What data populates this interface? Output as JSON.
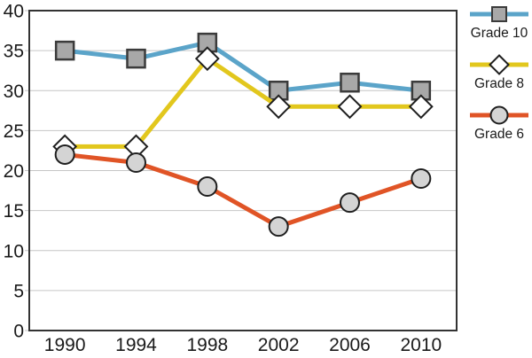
{
  "chart_data": {
    "type": "line",
    "title": "",
    "xlabel": "",
    "ylabel": "",
    "x": [
      "1990",
      "1994",
      "1998",
      "2002",
      "2006",
      "2010"
    ],
    "ylim": [
      0,
      40
    ],
    "yticks": [
      0,
      5,
      10,
      15,
      20,
      25,
      30,
      35,
      40
    ],
    "grid": true,
    "legend_position": "right",
    "series": [
      {
        "name": "Grade 10",
        "values": [
          35,
          34,
          36,
          30,
          31,
          30
        ],
        "color": "#5BA4C9",
        "marker": "square",
        "marker_fill": "#A8A8A8",
        "marker_stroke": "#3b3b3b"
      },
      {
        "name": "Grade 8",
        "values": [
          23,
          23,
          34,
          28,
          28,
          28
        ],
        "color": "#E2C71D",
        "marker": "diamond",
        "marker_fill": "#FFFFFF",
        "marker_stroke": "#1f1f1f"
      },
      {
        "name": "Grade 6",
        "values": [
          22,
          21,
          18,
          13,
          16,
          19
        ],
        "color": "#E05426",
        "marker": "circle",
        "marker_fill": "#D4D4D4",
        "marker_stroke": "#1f1f1f"
      }
    ],
    "colors": {
      "gridline": "#c6c6c6",
      "plot_border": "#333333",
      "axis_text": "#1a1a1a"
    }
  }
}
